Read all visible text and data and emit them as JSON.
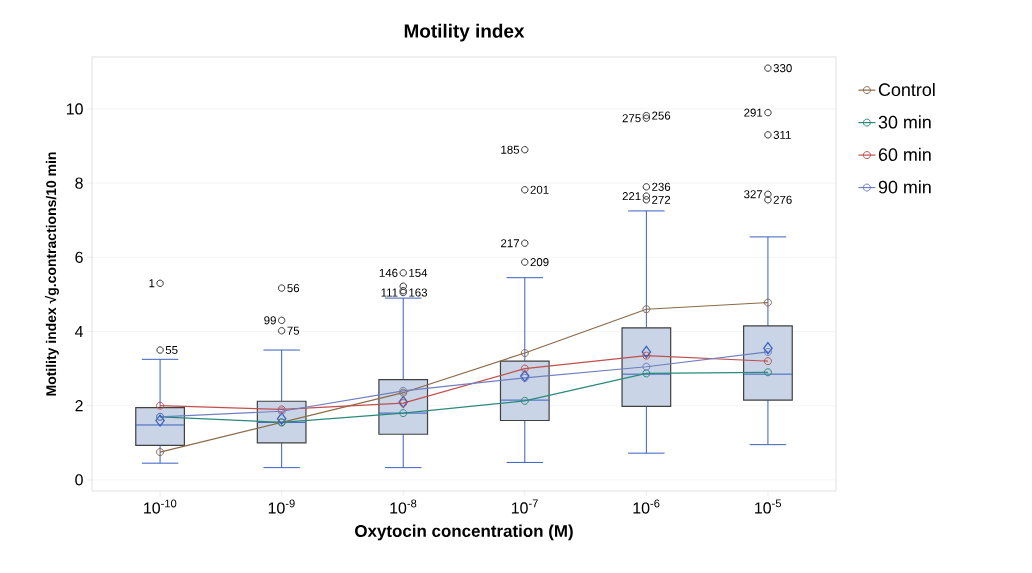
{
  "chart_data": {
    "type": "box",
    "title": "Motility index",
    "xlabel": "Oxytocin concentration (M)",
    "ylabel": "Motility index √g.contractions/10 min",
    "categories": [
      "10$^{-10}$",
      "10$^{-9}$",
      "10$^{-8}$",
      "10$^{-7}$",
      "10$^{-6}$",
      "10$^{-5}$"
    ],
    "ylim": [
      -0.3,
      11.4
    ],
    "yticks": [
      0,
      2,
      4,
      6,
      8,
      10
    ],
    "grid": "y",
    "legend": "right",
    "marker": "circle",
    "line_style": "solid",
    "series": [
      {
        "type": "box",
        "color": "#c9d5e6",
        "boxes": [
          {
            "low": 0.45,
            "q1": 0.93,
            "median": 1.48,
            "q3": 1.95,
            "high": 3.25,
            "mean": 1.6,
            "outliers": [
              5.3,
              3.5
            ]
          },
          {
            "low": 0.33,
            "q1": 1.0,
            "median": 1.55,
            "q3": 2.12,
            "high": 3.5,
            "mean": 1.65,
            "outliers": [
              5.17,
              4.3,
              4.02
            ]
          },
          {
            "low": 0.33,
            "q1": 1.23,
            "median": 1.8,
            "q3": 2.7,
            "high": 4.9,
            "mean": 2.1,
            "outliers": [
              5.58,
              5.22,
              5.1,
              5.05
            ]
          },
          {
            "low": 0.47,
            "q1": 1.6,
            "median": 2.15,
            "q3": 3.2,
            "high": 5.45,
            "mean": 2.8,
            "outliers": [
              8.9,
              7.82,
              6.38,
              5.87
            ]
          },
          {
            "low": 0.72,
            "q1": 1.98,
            "median": 2.85,
            "q3": 4.1,
            "high": 7.25,
            "mean": 3.45,
            "outliers": [
              9.82,
              9.75,
              7.9,
              7.65,
              7.55
            ]
          },
          {
            "low": 0.95,
            "q1": 2.15,
            "median": 2.85,
            "q3": 4.15,
            "high": 6.55,
            "mean": 3.55,
            "outliers": [
              11.1,
              9.9,
              9.3,
              7.7,
              7.55
            ]
          }
        ]
      },
      {
        "type": "line",
        "name": "Control",
        "color": "#8b6a48",
        "values": [
          0.75,
          1.55,
          2.35,
          3.42,
          4.6,
          4.78
        ]
      },
      {
        "type": "line",
        "name": "30 min",
        "color": "#2a8a7a",
        "values": [
          1.7,
          1.55,
          1.8,
          2.13,
          2.87,
          2.9
        ]
      },
      {
        "type": "line",
        "name": "60 min",
        "color": "#c0504d",
        "values": [
          2.0,
          1.9,
          2.07,
          3.0,
          3.35,
          3.2
        ]
      },
      {
        "type": "line",
        "name": "90 min",
        "color": "#6f7fc0",
        "values": [
          1.7,
          1.85,
          2.4,
          2.75,
          3.05,
          3.45
        ]
      }
    ],
    "annotations": [
      "1",
      "55",
      "56",
      "99",
      "75",
      "146",
      "154",
      "111",
      "163",
      "185",
      "201",
      "217",
      "209",
      "275",
      "256",
      "236",
      "221",
      "272",
      "330",
      "291",
      "311",
      "327",
      "276"
    ]
  }
}
